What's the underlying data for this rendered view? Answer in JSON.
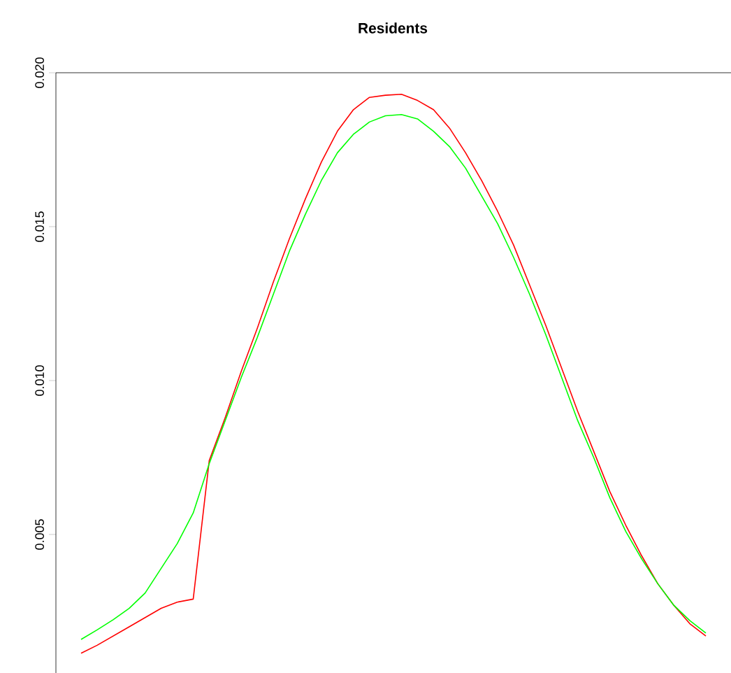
{
  "chart_data": {
    "type": "line",
    "title": "Residents",
    "categories": [
      null,
      null,
      null,
      null,
      null,
      null,
      null,
      null,
      null,
      null,
      null,
      null,
      null,
      null,
      null,
      null,
      null,
      null,
      null,
      null,
      null,
      null,
      null,
      null,
      null,
      null,
      null,
      null,
      null,
      null,
      null,
      null,
      null,
      null,
      null,
      null,
      null,
      null,
      null,
      null
    ],
    "series": [
      {
        "color": "#ff0000",
        "values": [
          0.00114,
          0.0014,
          0.0017,
          0.002,
          0.0023,
          0.0026,
          0.0028,
          0.0029,
          0.0074,
          0.0088,
          0.0103,
          0.0117,
          0.0132,
          0.0146,
          0.0159,
          0.0171,
          0.0181,
          0.0188,
          0.0192,
          0.01927,
          0.0193,
          0.0191,
          0.0188,
          0.0182,
          0.0174,
          0.0165,
          0.0155,
          0.0144,
          0.0131,
          0.0118,
          0.0104,
          0.009,
          0.0077,
          0.0064,
          0.0053,
          0.0043,
          0.0034,
          0.0027,
          0.0021,
          0.0017
        ]
      },
      {
        "color": "#00ff00",
        "values": [
          0.00159,
          0.0019,
          0.00223,
          0.0026,
          0.0031,
          0.0039,
          0.0047,
          0.0057,
          0.0073,
          0.0087,
          0.0101,
          0.0114,
          0.0128,
          0.0142,
          0.0154,
          0.0165,
          0.0174,
          0.018,
          0.0184,
          0.0186,
          0.01864,
          0.0185,
          0.0181,
          0.0176,
          0.0169,
          0.016,
          0.0151,
          0.014,
          0.0128,
          0.0115,
          0.0101,
          0.0087,
          0.0075,
          0.0062,
          0.0051,
          0.0042,
          0.0034,
          0.0027,
          0.0022,
          0.0018
        ]
      }
    ],
    "ylim": [
      0.0005,
      0.02
    ],
    "yticks": [
      0.005,
      {
        "value": 0.01,
        "label": "0.010"
      },
      0.015,
      {
        "value": 0.02,
        "label": "0.020"
      }
    ],
    "tick_labels": "y",
    "grid": false,
    "marker": "none",
    "line_style": "solid"
  }
}
